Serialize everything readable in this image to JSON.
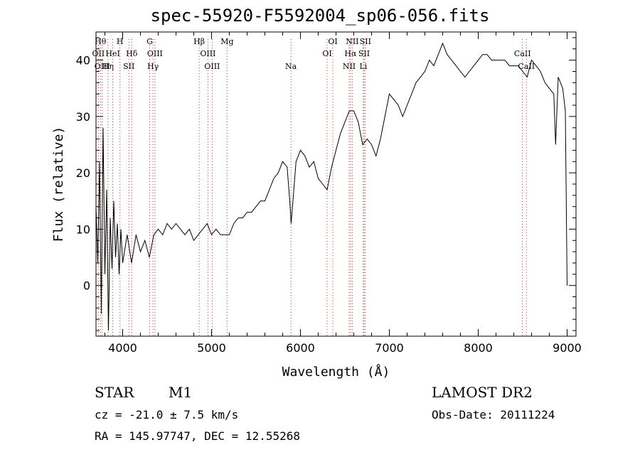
{
  "header": {
    "title": "spec-55920-F5592004_sp06-056.fits"
  },
  "info": {
    "object_class": "STAR",
    "subclass": "M1",
    "survey": "LAMOST DR2",
    "cz": "cz = -21.0 ± 7.5 km/s",
    "obs_date": "Obs-Date: 20111224",
    "radec": "RA = 145.97747, DEC =  12.55268"
  },
  "chart_data": {
    "type": "line",
    "xlabel": "Wavelength (Å)",
    "ylabel": "Flux (relative)",
    "xlim": [
      3700,
      9100
    ],
    "ylim": [
      -9,
      45
    ],
    "x_ticks": [
      4000,
      5000,
      6000,
      7000,
      8000,
      9000
    ],
    "y_ticks": [
      0,
      10,
      20,
      30,
      40
    ],
    "line_color": "#000000",
    "marker_color": "#d62728",
    "grid": false,
    "series": [
      {
        "values": [
          {
            "x": 3700,
            "y": 14
          },
          {
            "x": 3720,
            "y": 4
          },
          {
            "x": 3740,
            "y": 22
          },
          {
            "x": 3760,
            "y": -5
          },
          {
            "x": 3780,
            "y": 28
          },
          {
            "x": 3800,
            "y": 2
          },
          {
            "x": 3820,
            "y": 17
          },
          {
            "x": 3840,
            "y": -8
          },
          {
            "x": 3860,
            "y": 12
          },
          {
            "x": 3880,
            "y": 3
          },
          {
            "x": 3900,
            "y": 15
          },
          {
            "x": 3920,
            "y": 5
          },
          {
            "x": 3940,
            "y": 11
          },
          {
            "x": 3960,
            "y": 2
          },
          {
            "x": 3980,
            "y": 10
          },
          {
            "x": 4000,
            "y": 4
          },
          {
            "x": 4050,
            "y": 9
          },
          {
            "x": 4100,
            "y": 4
          },
          {
            "x": 4150,
            "y": 9
          },
          {
            "x": 4200,
            "y": 6
          },
          {
            "x": 4250,
            "y": 8
          },
          {
            "x": 4300,
            "y": 5
          },
          {
            "x": 4350,
            "y": 9
          },
          {
            "x": 4400,
            "y": 10
          },
          {
            "x": 4450,
            "y": 9
          },
          {
            "x": 4500,
            "y": 11
          },
          {
            "x": 4550,
            "y": 10
          },
          {
            "x": 4600,
            "y": 11
          },
          {
            "x": 4650,
            "y": 10
          },
          {
            "x": 4700,
            "y": 9
          },
          {
            "x": 4750,
            "y": 10
          },
          {
            "x": 4800,
            "y": 8
          },
          {
            "x": 4850,
            "y": 9
          },
          {
            "x": 4900,
            "y": 10
          },
          {
            "x": 4950,
            "y": 11
          },
          {
            "x": 5000,
            "y": 9
          },
          {
            "x": 5050,
            "y": 10
          },
          {
            "x": 5100,
            "y": 9
          },
          {
            "x": 5150,
            "y": 9
          },
          {
            "x": 5200,
            "y": 9
          },
          {
            "x": 5250,
            "y": 11
          },
          {
            "x": 5300,
            "y": 12
          },
          {
            "x": 5350,
            "y": 12
          },
          {
            "x": 5400,
            "y": 13
          },
          {
            "x": 5450,
            "y": 13
          },
          {
            "x": 5500,
            "y": 14
          },
          {
            "x": 5550,
            "y": 15
          },
          {
            "x": 5600,
            "y": 15
          },
          {
            "x": 5650,
            "y": 17
          },
          {
            "x": 5700,
            "y": 19
          },
          {
            "x": 5750,
            "y": 20
          },
          {
            "x": 5800,
            "y": 22
          },
          {
            "x": 5850,
            "y": 21
          },
          {
            "x": 5880,
            "y": 15
          },
          {
            "x": 5895,
            "y": 11
          },
          {
            "x": 5910,
            "y": 14
          },
          {
            "x": 5950,
            "y": 22
          },
          {
            "x": 6000,
            "y": 24
          },
          {
            "x": 6050,
            "y": 23
          },
          {
            "x": 6100,
            "y": 21
          },
          {
            "x": 6150,
            "y": 22
          },
          {
            "x": 6200,
            "y": 19
          },
          {
            "x": 6250,
            "y": 18
          },
          {
            "x": 6300,
            "y": 17
          },
          {
            "x": 6350,
            "y": 21
          },
          {
            "x": 6400,
            "y": 24
          },
          {
            "x": 6450,
            "y": 27
          },
          {
            "x": 6500,
            "y": 29
          },
          {
            "x": 6550,
            "y": 31
          },
          {
            "x": 6600,
            "y": 31
          },
          {
            "x": 6650,
            "y": 29
          },
          {
            "x": 6700,
            "y": 25
          },
          {
            "x": 6750,
            "y": 26
          },
          {
            "x": 6800,
            "y": 25
          },
          {
            "x": 6850,
            "y": 23
          },
          {
            "x": 6900,
            "y": 26
          },
          {
            "x": 6950,
            "y": 30
          },
          {
            "x": 7000,
            "y": 34
          },
          {
            "x": 7050,
            "y": 33
          },
          {
            "x": 7100,
            "y": 32
          },
          {
            "x": 7150,
            "y": 30
          },
          {
            "x": 7200,
            "y": 32
          },
          {
            "x": 7250,
            "y": 34
          },
          {
            "x": 7300,
            "y": 36
          },
          {
            "x": 7350,
            "y": 37
          },
          {
            "x": 7400,
            "y": 38
          },
          {
            "x": 7450,
            "y": 40
          },
          {
            "x": 7500,
            "y": 39
          },
          {
            "x": 7550,
            "y": 41
          },
          {
            "x": 7600,
            "y": 43
          },
          {
            "x": 7650,
            "y": 41
          },
          {
            "x": 7700,
            "y": 40
          },
          {
            "x": 7750,
            "y": 39
          },
          {
            "x": 7800,
            "y": 38
          },
          {
            "x": 7850,
            "y": 37
          },
          {
            "x": 7900,
            "y": 38
          },
          {
            "x": 7950,
            "y": 39
          },
          {
            "x": 8000,
            "y": 40
          },
          {
            "x": 8050,
            "y": 41
          },
          {
            "x": 8100,
            "y": 41
          },
          {
            "x": 8150,
            "y": 40
          },
          {
            "x": 8200,
            "y": 40
          },
          {
            "x": 8250,
            "y": 40
          },
          {
            "x": 8300,
            "y": 40
          },
          {
            "x": 8350,
            "y": 39
          },
          {
            "x": 8400,
            "y": 39
          },
          {
            "x": 8450,
            "y": 39
          },
          {
            "x": 8500,
            "y": 38
          },
          {
            "x": 8550,
            "y": 37
          },
          {
            "x": 8600,
            "y": 40
          },
          {
            "x": 8650,
            "y": 39
          },
          {
            "x": 8700,
            "y": 38
          },
          {
            "x": 8750,
            "y": 36
          },
          {
            "x": 8800,
            "y": 35
          },
          {
            "x": 8850,
            "y": 34
          },
          {
            "x": 8870,
            "y": 25
          },
          {
            "x": 8900,
            "y": 37
          },
          {
            "x": 8950,
            "y": 35
          },
          {
            "x": 8980,
            "y": 31
          },
          {
            "x": 9000,
            "y": 0
          }
        ]
      }
    ],
    "line_markers": [
      {
        "wavelength": 3727,
        "labels": [
          "OII"
        ],
        "label_row": 1
      },
      {
        "wavelength": 3750,
        "labels": [
          "Hθ"
        ],
        "label_row": 0
      },
      {
        "wavelength": 3770,
        "labels": [
          "OIII"
        ],
        "label_row": 2
      },
      {
        "wavelength": 3835,
        "labels": [
          "Hη"
        ],
        "label_row": 2
      },
      {
        "wavelength": 3889,
        "labels": [
          "HeI"
        ],
        "label_row": 1
      },
      {
        "wavelength": 3969,
        "labels": [
          "H"
        ],
        "label_row": 0
      },
      {
        "wavelength": 4070,
        "labels": [
          "SII"
        ],
        "label_row": 2
      },
      {
        "wavelength": 4102,
        "labels": [
          "Hδ"
        ],
        "label_row": 1
      },
      {
        "wavelength": 4304,
        "labels": [
          "G"
        ],
        "label_row": 0
      },
      {
        "wavelength": 4341,
        "labels": [
          "Hγ"
        ],
        "label_row": 2
      },
      {
        "wavelength": 4363,
        "labels": [
          "OIII"
        ],
        "label_row": 1
      },
      {
        "wavelength": 4861,
        "labels": [
          "Hβ"
        ],
        "label_row": 0
      },
      {
        "wavelength": 4959,
        "labels": [
          "OIII"
        ],
        "label_row": 1
      },
      {
        "wavelength": 5007,
        "labels": [
          "OIII"
        ],
        "label_row": 2
      },
      {
        "wavelength": 5175,
        "labels": [
          "Mg"
        ],
        "label_row": 0
      },
      {
        "wavelength": 5893,
        "labels": [
          "Na"
        ],
        "label_row": 2
      },
      {
        "wavelength": 6300,
        "labels": [
          "OI"
        ],
        "label_row": 1
      },
      {
        "wavelength": 6364,
        "labels": [
          "OI"
        ],
        "label_row": 0
      },
      {
        "wavelength": 6548,
        "labels": [
          "NII"
        ],
        "label_row": 2
      },
      {
        "wavelength": 6563,
        "labels": [
          "Hα"
        ],
        "label_row": 1
      },
      {
        "wavelength": 6583,
        "labels": [
          "NII"
        ],
        "label_row": 0
      },
      {
        "wavelength": 6707,
        "labels": [
          "Li"
        ],
        "label_row": 2
      },
      {
        "wavelength": 6716,
        "labels": [
          "SII"
        ],
        "label_row": 1
      },
      {
        "wavelength": 6731,
        "labels": [
          "SII"
        ],
        "label_row": 0
      },
      {
        "wavelength": 8498,
        "labels": [
          "CaII"
        ],
        "label_row": 1
      },
      {
        "wavelength": 8542,
        "labels": [
          "CaII"
        ],
        "label_row": 2
      }
    ]
  }
}
